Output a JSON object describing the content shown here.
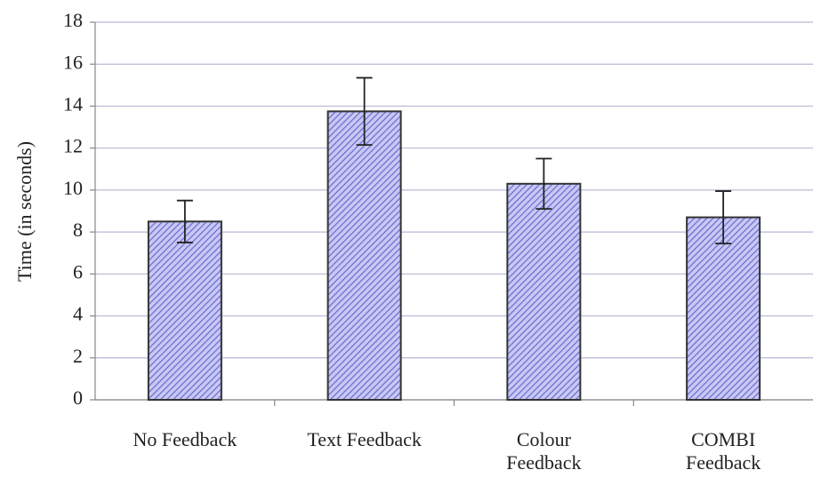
{
  "chart_data": {
    "type": "bar",
    "ylabel": "Time (in seconds)",
    "categories": [
      "No Feedback",
      "Text Feedback",
      "Colour\nFeedback",
      "COMBI\nFeedback"
    ],
    "values": [
      8.5,
      13.75,
      10.3,
      8.7
    ],
    "errors": [
      1.0,
      1.6,
      1.2,
      1.25
    ],
    "color": "#9a9ae8",
    "ylim": [
      0,
      18
    ],
    "yticks": [
      0,
      2,
      4,
      6,
      8,
      10,
      12,
      14,
      16,
      18
    ],
    "grid": true
  }
}
